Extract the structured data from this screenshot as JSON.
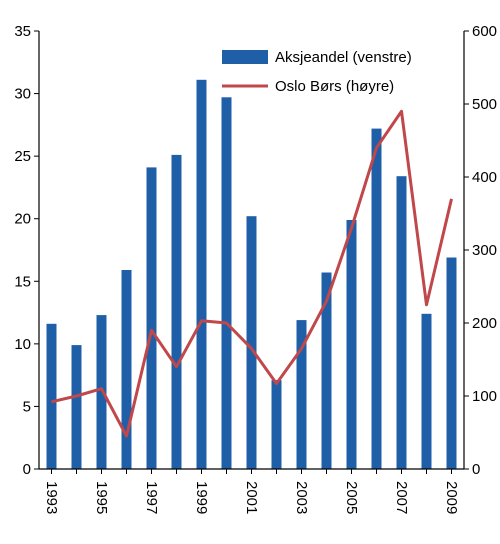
{
  "chart_data": {
    "type": "bar",
    "title": "",
    "xlabel": "",
    "categories": [
      "1993",
      "1994",
      "1995",
      "1996",
      "1997",
      "1998",
      "1999",
      "2000",
      "2001",
      "2002",
      "2003",
      "2004",
      "2005",
      "2006",
      "2007",
      "2008",
      "2009"
    ],
    "x_tick_labels": [
      "1993",
      "1995",
      "1997",
      "1999",
      "2001",
      "2003",
      "2005",
      "2007",
      "2009"
    ],
    "y_left": {
      "ylim": [
        0,
        35
      ],
      "ticks": [
        "0",
        "5",
        "10",
        "15",
        "20",
        "25",
        "30",
        "35"
      ]
    },
    "y_right": {
      "ylim": [
        0,
        600
      ],
      "ticks": [
        "0",
        "100",
        "200",
        "300",
        "400",
        "500",
        "600"
      ]
    },
    "grid": false,
    "legend_position": "top-right",
    "series": [
      {
        "name": "Aksjeandel (venstre)",
        "type": "bar",
        "axis": "left",
        "color": "#1f5fa8",
        "values": [
          11.6,
          9.9,
          12.3,
          15.9,
          24.1,
          25.1,
          31.1,
          29.7,
          20.2,
          7.1,
          11.9,
          15.7,
          19.9,
          27.2,
          23.4,
          12.4,
          16.9
        ]
      },
      {
        "name": "Oslo Børs (høyre)",
        "type": "line",
        "axis": "right",
        "color": "#c0474a",
        "values": [
          92,
          100,
          110,
          45,
          190,
          140,
          203,
          200,
          165,
          117,
          165,
          230,
          330,
          440,
          490,
          225,
          370
        ]
      }
    ]
  }
}
